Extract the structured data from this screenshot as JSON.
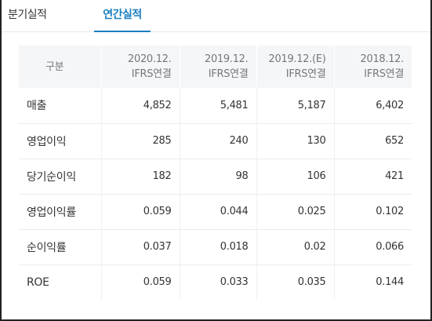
{
  "tabs": [
    {
      "label": "분기실적",
      "active": false
    },
    {
      "label": "연간실적",
      "active": true
    }
  ],
  "table": {
    "header_label": "구분",
    "columns": [
      {
        "line1": "2020.12.",
        "line2": "IFRS연결"
      },
      {
        "line1": "2019.12.",
        "line2": "IFRS연결"
      },
      {
        "line1": "2019.12.(E)",
        "line2": "IFRS연결"
      },
      {
        "line1": "2018.12.",
        "line2": "IFRS연결"
      }
    ],
    "rows": [
      {
        "label": "매출",
        "values": [
          "4,852",
          "5,481",
          "5,187",
          "6,402"
        ]
      },
      {
        "label": "영업이익",
        "values": [
          "285",
          "240",
          "130",
          "652"
        ]
      },
      {
        "label": "당기순이익",
        "values": [
          "182",
          "98",
          "106",
          "421"
        ]
      },
      {
        "label": "영업이익률",
        "values": [
          "0.059",
          "0.044",
          "0.025",
          "0.102"
        ]
      },
      {
        "label": "순이익률",
        "values": [
          "0.037",
          "0.018",
          "0.02",
          "0.066"
        ]
      },
      {
        "label": "ROE",
        "values": [
          "0.059",
          "0.033",
          "0.035",
          "0.144"
        ]
      }
    ]
  },
  "colors": {
    "accent": "#1a7fc1",
    "header_bg": "#f4f6f8"
  }
}
